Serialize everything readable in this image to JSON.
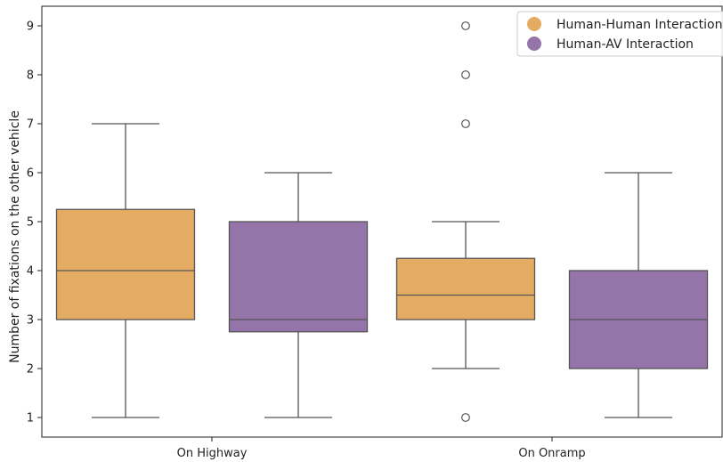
{
  "chart_data": {
    "type": "box",
    "categories": [
      "On Highway",
      "On Onramp"
    ],
    "ylabel": "Number of fixations on the other vehicle",
    "xlabel": "",
    "ylim": [
      0.6,
      9.4
    ],
    "yticks": [
      1,
      2,
      3,
      4,
      5,
      6,
      7,
      8,
      9
    ],
    "grid": false,
    "legend_position": "top-right",
    "series": [
      {
        "name": "Human-Human Interaction",
        "color": "#E3AC62",
        "boxes": [
          {
            "category": "On Highway",
            "whisker_low": 1,
            "q1": 3,
            "median": 4,
            "q3": 5.25,
            "whisker_high": 7,
            "outliers": []
          },
          {
            "category": "On Onramp",
            "whisker_low": 2,
            "q1": 3,
            "median": 3.5,
            "q3": 4.25,
            "whisker_high": 5,
            "outliers": [
              1,
              7,
              8,
              9
            ]
          }
        ]
      },
      {
        "name": "Human-AV Interaction",
        "color": "#9575A9",
        "boxes": [
          {
            "category": "On Highway",
            "whisker_low": 1,
            "q1": 2.75,
            "median": 3,
            "q3": 5,
            "whisker_high": 6,
            "outliers": []
          },
          {
            "category": "On Onramp",
            "whisker_low": 1,
            "q1": 2,
            "median": 3,
            "q3": 4,
            "whisker_high": 6,
            "outliers": []
          }
        ]
      }
    ]
  }
}
